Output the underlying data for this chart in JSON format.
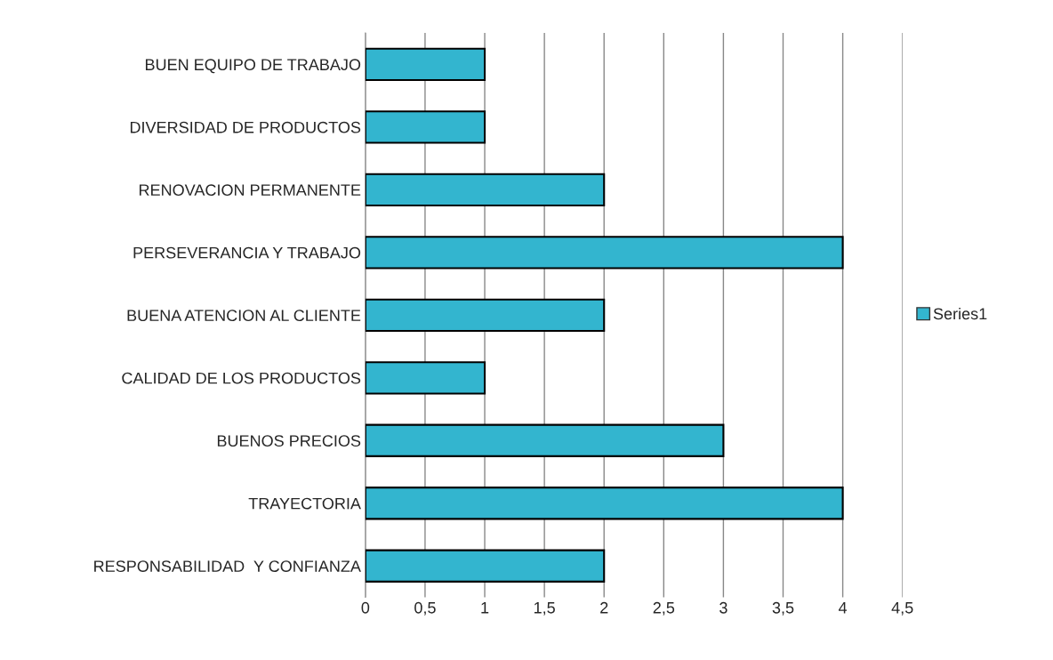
{
  "chart_data": {
    "type": "bar",
    "orientation": "horizontal",
    "categories": [
      "BUEN EQUIPO DE TRABAJO",
      "DIVERSIDAD DE PRODUCTOS",
      "RENOVACION PERMANENTE",
      "PERSEVERANCIA Y TRABAJO",
      "BUENA ATENCION AL CLIENTE",
      "CALIDAD DE LOS PRODUCTOS",
      "BUENOS PRECIOS",
      "TRAYECTORIA",
      "RESPONSABILIDAD  Y CONFIANZA"
    ],
    "series": [
      {
        "name": "Series1",
        "color": "#33b5cf",
        "values": [
          1,
          1,
          2,
          4,
          2,
          1,
          3,
          4,
          2
        ]
      }
    ],
    "xlim": [
      0,
      4.5
    ],
    "xticks": [
      0,
      {
        "value": 0.5,
        "label": "0,5"
      },
      1,
      {
        "value": 1.5,
        "label": "1,5"
      },
      2,
      {
        "value": 2.5,
        "label": "2,5"
      },
      3,
      {
        "value": 3.5,
        "label": "3,5"
      },
      4,
      {
        "value": 4.5,
        "label": "4,5"
      }
    ],
    "grid": "x",
    "legend": "right"
  }
}
